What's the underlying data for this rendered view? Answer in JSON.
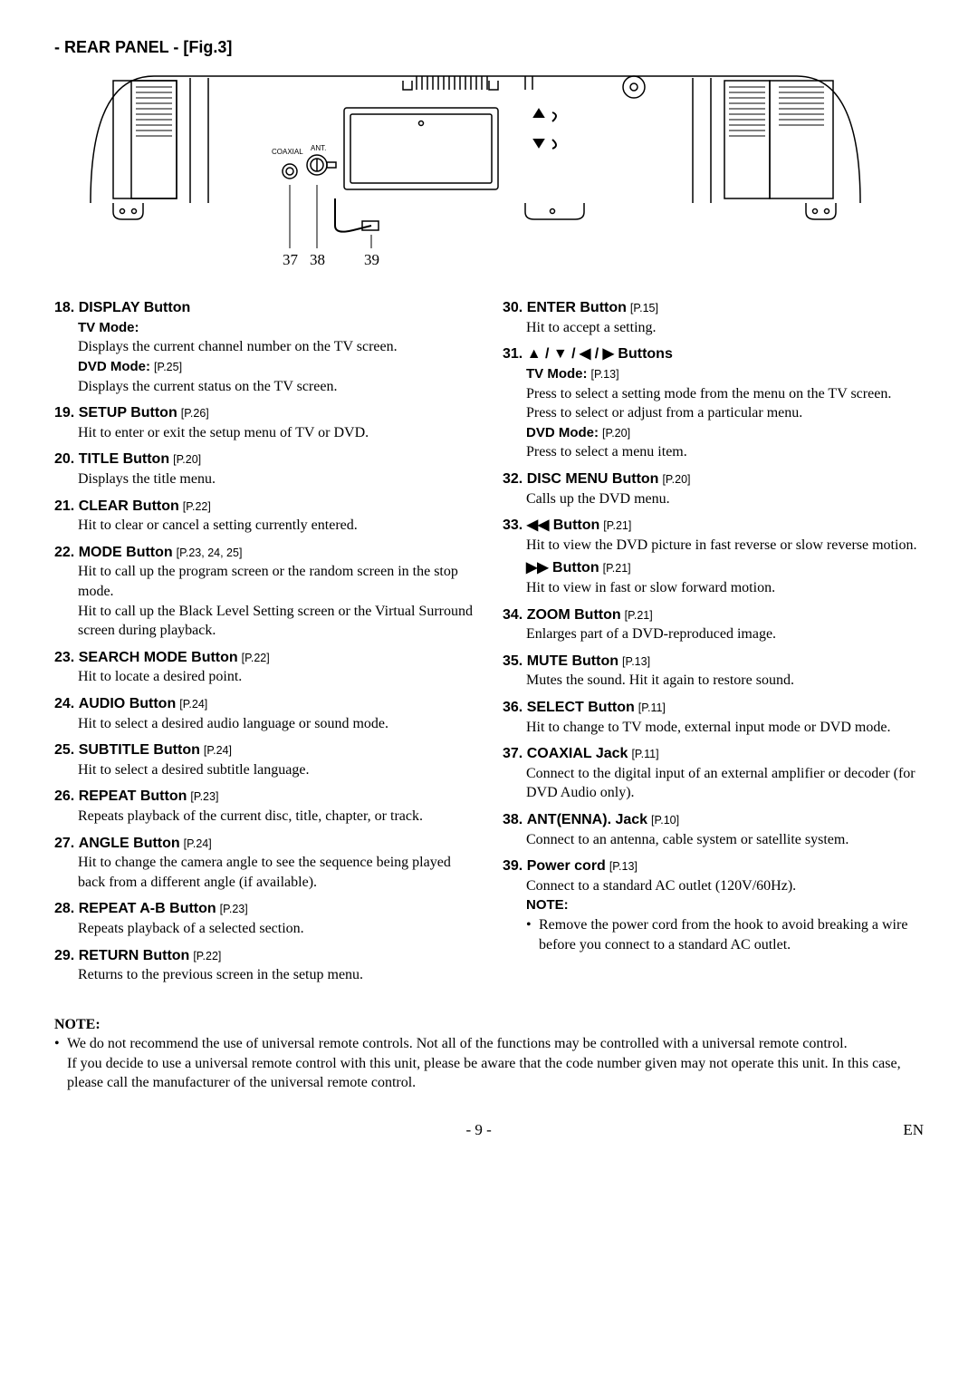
{
  "section_title": "- REAR PANEL - [Fig.3]",
  "diagram": {
    "labels": {
      "l37": "37",
      "l38": "38",
      "l39": "39",
      "coaxial": "COAXIAL",
      "ant": "ANT."
    }
  },
  "left": [
    {
      "num": "18.",
      "title": "DISPLAY Button",
      "ref": "",
      "subs": [
        {
          "sub": "TV Mode:",
          "ref": "",
          "body": "Displays the current channel number on the TV screen."
        },
        {
          "sub": "DVD Mode:",
          "ref": "[P.25]",
          "body": "Displays the current status on the TV screen."
        }
      ]
    },
    {
      "num": "19.",
      "title": "SETUP Button",
      "ref": "[P.26]",
      "body": "Hit to enter or exit the setup menu of  TV or DVD."
    },
    {
      "num": "20.",
      "title": "TITLE Button",
      "ref": "[P.20]",
      "body": "Displays the title menu."
    },
    {
      "num": "21.",
      "title": "CLEAR Button",
      "ref": "[P.22]",
      "body": "Hit to clear or cancel a setting currently entered."
    },
    {
      "num": "22.",
      "title": "MODE Button",
      "ref": "[P.23, 24, 25]",
      "body": "Hit to call up the program screen or the random screen in the stop mode.\nHit to call up the Black Level Setting screen or the Virtual Surround screen during playback."
    },
    {
      "num": "23.",
      "title": "SEARCH MODE Button",
      "ref": "[P.22]",
      "body": "Hit to locate a desired point."
    },
    {
      "num": "24.",
      "title": "AUDIO Button",
      "ref": "[P.24]",
      "body": "Hit to select a desired audio language or sound mode."
    },
    {
      "num": "25.",
      "title": "SUBTITLE Button",
      "ref": "[P.24]",
      "body": "Hit to select a desired subtitle language."
    },
    {
      "num": "26.",
      "title": "REPEAT Button",
      "ref": "[P.23]",
      "body": "Repeats playback of the current disc, title, chapter, or track."
    },
    {
      "num": "27.",
      "title": "ANGLE Button",
      "ref": "[P.24]",
      "body": "Hit to change the camera angle to see the sequence being played back from a different angle (if available)."
    },
    {
      "num": "28.",
      "title": "REPEAT A-B Button",
      "ref": "[P.23]",
      "body": "Repeats playback of a selected section."
    },
    {
      "num": "29.",
      "title": "RETURN Button",
      "ref": "[P.22]",
      "body": "Returns to the previous screen in the setup menu."
    }
  ],
  "right": [
    {
      "num": "30.",
      "title": "ENTER Button",
      "ref": "[P.15]",
      "body": "Hit to accept a setting."
    },
    {
      "num": "31.",
      "title": "▲ / ▼ / ◀ / ▶ Buttons",
      "ref": "",
      "subs": [
        {
          "sub": "TV Mode:",
          "ref": "[P.13]",
          "body": "Press to select a setting mode from the menu on the TV screen.\nPress to select or adjust from a particular menu."
        },
        {
          "sub": "DVD Mode:",
          "ref": "[P.20]",
          "body": "Press to select a menu item."
        }
      ]
    },
    {
      "num": "32.",
      "title": "DISC MENU Button",
      "ref": "[P.20]",
      "body": "Calls up the DVD menu."
    },
    {
      "num": "33.",
      "title": "◀◀ Button",
      "ref": "[P.21]",
      "body": "Hit to view the DVD picture in fast reverse or slow reverse motion.",
      "extra": {
        "title": "▶▶ Button",
        "ref": "[P.21]",
        "body": "Hit to view in fast or slow forward motion."
      }
    },
    {
      "num": "34.",
      "title": "ZOOM Button",
      "ref": "[P.21]",
      "body": "Enlarges part of a DVD-reproduced image."
    },
    {
      "num": "35.",
      "title": "MUTE Button",
      "ref": "[P.13]",
      "body": "Mutes the sound. Hit it again to restore sound."
    },
    {
      "num": "36.",
      "title": "SELECT Button",
      "ref": "[P.11]",
      "body": "Hit to change to TV mode, external input mode or DVD mode."
    },
    {
      "num": "37.",
      "title": "COAXIAL Jack",
      "ref": "[P.11]",
      "body": "Connect to the digital input of an external amplifier or decoder (for DVD Audio only)."
    },
    {
      "num": "38.",
      "title": "ANT(ENNA). Jack",
      "ref": "[P.10]",
      "body": "Connect to an antenna, cable system or satellite system."
    },
    {
      "num": "39.",
      "title": "Power cord",
      "ref": "[P.13]",
      "body": "Connect to a standard AC outlet (120V/60Hz).",
      "note_label": "NOTE:",
      "note_bullet": "Remove the power cord from the hook to avoid breaking a wire before you connect to a standard AC outlet."
    }
  ],
  "bottom_note": {
    "label": "NOTE:",
    "bullet": "We do not recommend the use of universal remote controls. Not all of the functions may be controlled with a universal remote control.",
    "cont": "If you decide to use a universal remote control with this unit, please be aware that the code number given may not operate this unit. In this case, please call the manufacturer of the universal remote control."
  },
  "footer": {
    "page": "- 9 -",
    "lang": "EN"
  }
}
